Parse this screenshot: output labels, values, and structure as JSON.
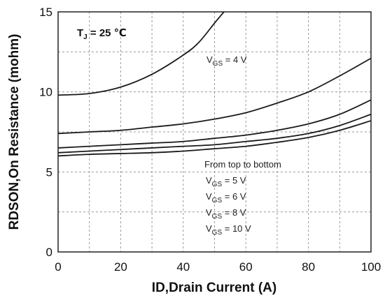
{
  "chart_data": {
    "type": "line",
    "xlabel": "ID,Drain Current (A)",
    "ylabel": "RDSON,On Resistance (mohm)",
    "xlim": [
      0,
      100
    ],
    "ylim": [
      0,
      15
    ],
    "xticks": [
      "0",
      "20",
      "40",
      "60",
      "80",
      "100"
    ],
    "yticks": [
      "0",
      "5",
      "10",
      "15"
    ],
    "grid": true,
    "series": [
      {
        "x": [
          0,
          10,
          20,
          30,
          40,
          45,
          50,
          53
        ],
        "y": [
          9.8,
          9.9,
          10.3,
          11.1,
          12.3,
          13.1,
          14.3,
          15.0
        ]
      },
      {
        "x": [
          0,
          10,
          20,
          30,
          40,
          50,
          60,
          70,
          80,
          90,
          100
        ],
        "y": [
          7.4,
          7.5,
          7.6,
          7.8,
          8.0,
          8.3,
          8.7,
          9.3,
          10.0,
          11.0,
          12.1
        ]
      },
      {
        "x": [
          0,
          10,
          20,
          30,
          40,
          50,
          60,
          70,
          80,
          90,
          100
        ],
        "y": [
          6.5,
          6.6,
          6.7,
          6.8,
          6.9,
          7.1,
          7.3,
          7.6,
          8.0,
          8.6,
          9.5
        ]
      },
      {
        "x": [
          0,
          10,
          20,
          30,
          40,
          50,
          60,
          70,
          80,
          90,
          100
        ],
        "y": [
          6.2,
          6.3,
          6.4,
          6.5,
          6.6,
          6.7,
          6.9,
          7.1,
          7.4,
          7.9,
          8.6
        ]
      },
      {
        "x": [
          0,
          10,
          20,
          30,
          40,
          50,
          60,
          70,
          80,
          90,
          100
        ],
        "y": [
          6.0,
          6.1,
          6.15,
          6.2,
          6.3,
          6.45,
          6.6,
          6.85,
          7.15,
          7.6,
          8.2
        ]
      }
    ],
    "annotations": {
      "tj": {
        "main": "T",
        "sub": "J",
        "rest": " = 25 ℃"
      },
      "vgs_top": {
        "main": "V",
        "sub": "GS",
        "rest": " = 4 V"
      },
      "order_note": "From top to bottom",
      "vgs_list": [
        {
          "main": "V",
          "sub": "GS",
          "rest": " = 5 V"
        },
        {
          "main": "V",
          "sub": "GS",
          "rest": " = 6 V"
        },
        {
          "main": "V",
          "sub": "GS",
          "rest": " = 8 V"
        },
        {
          "main": "V",
          "sub": "GS",
          "rest": " = 10 V"
        }
      ]
    }
  }
}
